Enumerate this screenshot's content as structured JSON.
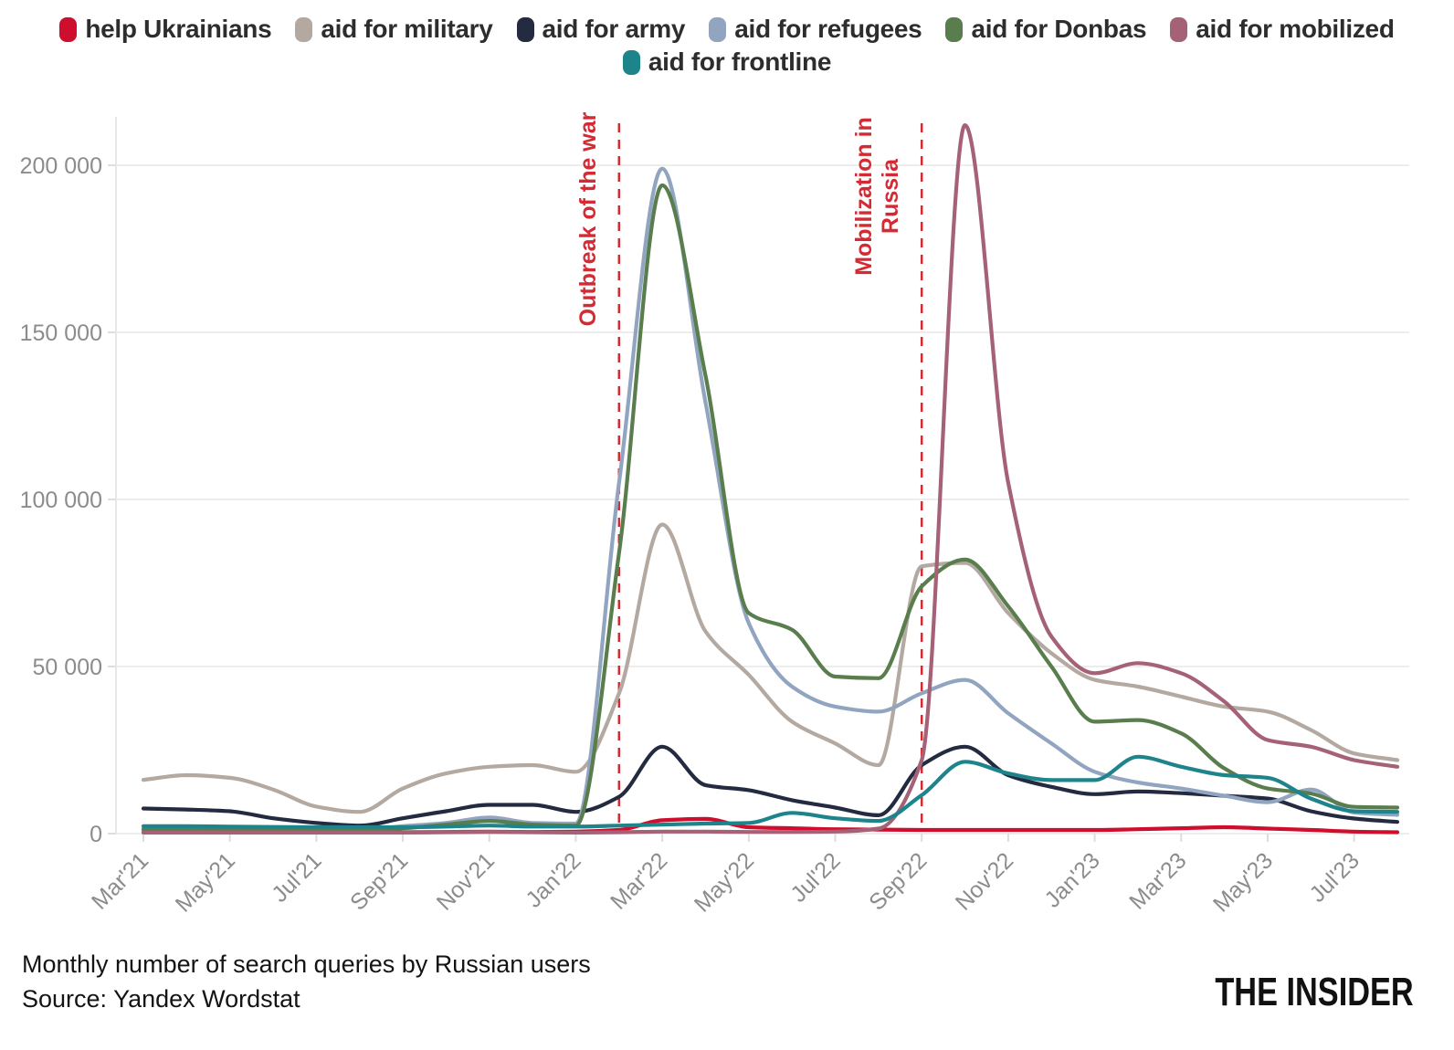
{
  "footer": {
    "title": "Monthly number of search queries by Russian users",
    "source": "Source: Yandex Wordstat",
    "logo": "THE INSIDER"
  },
  "axis_colors": {
    "grid": "#e7e7e7",
    "tick": "#dddddd",
    "label": "#8c8c8c"
  },
  "annotation_color": "#d42a33",
  "chart_data": {
    "type": "line",
    "title": "Monthly number of search queries by Russian users",
    "xlabel": "",
    "ylabel": "",
    "ylim": [
      0,
      215000
    ],
    "grid": "horizontal",
    "legend_position": "top-center",
    "x": [
      "Mar'21",
      "Apr'21",
      "May'21",
      "Jun'21",
      "Jul'21",
      "Aug'21",
      "Sep'21",
      "Oct'21",
      "Nov'21",
      "Dec'21",
      "Jan'22",
      "Feb'22",
      "Mar'22",
      "Apr'22",
      "May'22",
      "Jun'22",
      "Jul'22",
      "Aug'22",
      "Sep'22",
      "Oct'22",
      "Nov'22",
      "Dec'22",
      "Jan'23",
      "Feb'23",
      "Mar'23",
      "Apr'23",
      "May'23",
      "Jun'23",
      "Jul'23",
      "Aug'23"
    ],
    "x_tick_labels": [
      "Mar'21",
      "May'21",
      "Jul'21",
      "Sep'21",
      "Nov'21",
      "Jan'22",
      "Mar'22",
      "May'22",
      "Jul'22",
      "Sep'22",
      "Nov'22",
      "Jan'23",
      "Mar'23",
      "May'23",
      "Jul'23"
    ],
    "y_ticks": [
      {
        "value": 0,
        "label": "0"
      },
      {
        "value": 50000,
        "label": "50 000"
      },
      {
        "value": 100000,
        "label": "100 000"
      },
      {
        "value": 150000,
        "label": "150 000"
      },
      {
        "value": 200000,
        "label": "200 000"
      }
    ],
    "series": [
      {
        "name": "help Ukrainians",
        "color": "#cf0d2c",
        "values": [
          400,
          400,
          400,
          350,
          300,
          300,
          400,
          500,
          600,
          500,
          600,
          1100,
          4000,
          4400,
          1900,
          1600,
          1300,
          1200,
          1100,
          1100,
          1100,
          1100,
          1100,
          1300,
          1600,
          1900,
          1500,
          1100,
          600,
          400
        ]
      },
      {
        "name": "aid for military",
        "color": "#b3a9a1",
        "values": [
          16100,
          17500,
          16700,
          13200,
          8100,
          6500,
          13500,
          18000,
          20000,
          20500,
          18500,
          42000,
          92500,
          60500,
          47500,
          33500,
          27000,
          20500,
          80000,
          81000,
          66000,
          54000,
          46000,
          44000,
          41000,
          38000,
          36500,
          31000,
          24000,
          22000
        ]
      },
      {
        "name": "aid for army",
        "color": "#242b41",
        "values": [
          7500,
          7200,
          6700,
          4600,
          3200,
          2400,
          4600,
          6700,
          8600,
          8600,
          6500,
          11000,
          26000,
          14500,
          13000,
          10000,
          7800,
          5500,
          20500,
          26000,
          17500,
          14000,
          11800,
          12600,
          12100,
          11300,
          10500,
          6700,
          4500,
          3500
        ]
      },
      {
        "name": "aid for refugees",
        "color": "#91a5c1",
        "values": [
          1100,
          1100,
          1100,
          1100,
          1100,
          1100,
          2200,
          3200,
          4800,
          3200,
          3000,
          105000,
          199000,
          129000,
          63000,
          44000,
          38000,
          36500,
          42000,
          46000,
          36000,
          27000,
          18500,
          15300,
          13500,
          11300,
          9400,
          13200,
          6300,
          5600
        ]
      },
      {
        "name": "aid for Donbas",
        "color": "#597d4c",
        "values": [
          1300,
          1300,
          1300,
          1100,
          1100,
          1100,
          1600,
          2700,
          3800,
          2700,
          2400,
          84000,
          194000,
          137000,
          66000,
          61000,
          47000,
          46500,
          74000,
          82000,
          68000,
          50000,
          33500,
          34000,
          30000,
          19500,
          13500,
          12000,
          8000,
          7800
        ]
      },
      {
        "name": "aid for mobilized",
        "color": "#a56277",
        "values": [
          300,
          300,
          300,
          300,
          300,
          300,
          300,
          400,
          500,
          400,
          300,
          400,
          600,
          600,
          500,
          500,
          600,
          1500,
          22000,
          212000,
          105000,
          59000,
          48000,
          51000,
          48000,
          39500,
          28000,
          26000,
          22000,
          20000
        ]
      },
      {
        "name": "aid for frontline",
        "color": "#1e848c",
        "values": [
          2200,
          2200,
          2100,
          2000,
          1900,
          1900,
          1900,
          2100,
          2400,
          2100,
          2100,
          2400,
          2700,
          3000,
          3200,
          6200,
          4600,
          3800,
          11500,
          21500,
          18000,
          16000,
          16000,
          23000,
          20000,
          17500,
          16700,
          10500,
          6700,
          6500
        ]
      }
    ],
    "legend_rows": [
      [
        0,
        1,
        2,
        3,
        4,
        5
      ],
      [
        6
      ]
    ],
    "annotations": [
      {
        "lines": [
          "Outbreak of the war"
        ],
        "month_index": 11,
        "center_y": 240
      },
      {
        "lines": [
          "Mobilization in",
          "Russia"
        ],
        "month_index": 18,
        "center_y": 215
      }
    ]
  }
}
